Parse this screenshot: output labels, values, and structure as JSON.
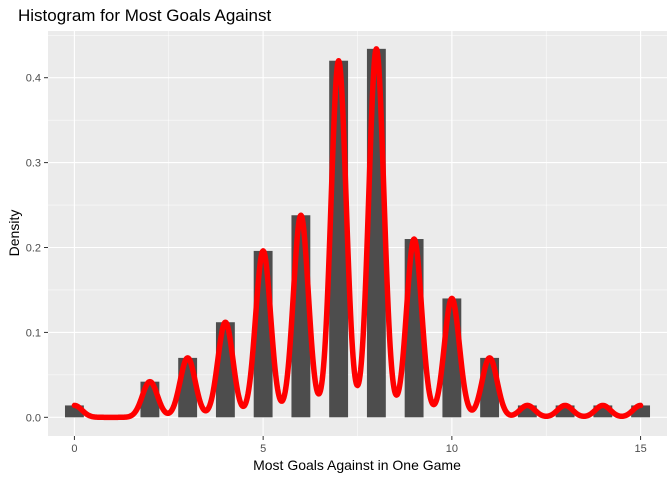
{
  "chart_data": {
    "type": "bar",
    "title": "Histogram for Most Goals Against",
    "xlabel": "Most Goals Against in One Game",
    "ylabel": "Density",
    "xlim": [
      -0.7,
      15.7
    ],
    "ylim": [
      -0.022,
      0.455
    ],
    "xticks": [
      0,
      5,
      10,
      15
    ],
    "yticks": [
      0.0,
      0.1,
      0.2,
      0.3,
      0.4
    ],
    "ytick_labels": [
      "0.0",
      "0.1",
      "0.2",
      "0.3",
      "0.4"
    ],
    "grid": true,
    "bar_width": 0.5,
    "bars": [
      {
        "x": 0,
        "density": 0.014
      },
      {
        "x": 2,
        "density": 0.042
      },
      {
        "x": 3,
        "density": 0.07
      },
      {
        "x": 4,
        "density": 0.112
      },
      {
        "x": 5,
        "density": 0.196
      },
      {
        "x": 6,
        "density": 0.238
      },
      {
        "x": 7,
        "density": 0.42
      },
      {
        "x": 8,
        "density": 0.434
      },
      {
        "x": 9,
        "density": 0.21
      },
      {
        "x": 10,
        "density": 0.14
      },
      {
        "x": 11,
        "density": 0.07
      },
      {
        "x": 12,
        "density": 0.014
      },
      {
        "x": 13,
        "density": 0.014
      },
      {
        "x": 14,
        "density": 0.014
      },
      {
        "x": 15,
        "density": 0.014
      }
    ],
    "density_curve": {
      "color": "#ff0000",
      "bandwidth": 0.2
    },
    "colors": {
      "panel": "#ebebeb",
      "grid": "#ffffff",
      "bar": "#4d4d4d",
      "curve": "#ff0000"
    }
  }
}
